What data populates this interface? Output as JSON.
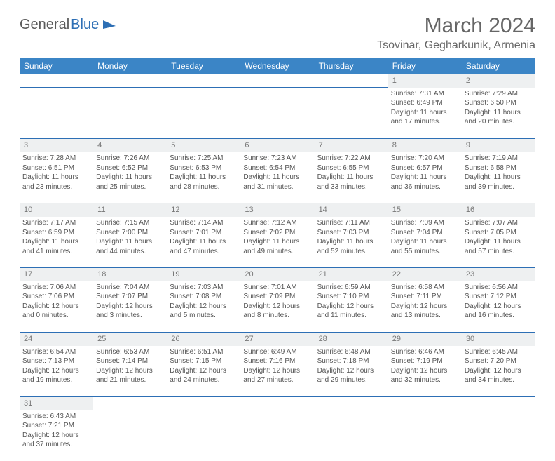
{
  "logo": {
    "text1": "General",
    "text2": "Blue"
  },
  "header": {
    "title": "March 2024",
    "location": "Tsovinar, Gegharkunik, Armenia"
  },
  "colors": {
    "headerBg": "#3b85c6",
    "dayRowBg": "#eef0f1",
    "border": "#2d6fb5"
  },
  "dayHeaders": [
    "Sunday",
    "Monday",
    "Tuesday",
    "Wednesday",
    "Thursday",
    "Friday",
    "Saturday"
  ],
  "weeks": [
    {
      "nums": [
        "",
        "",
        "",
        "",
        "",
        "1",
        "2"
      ],
      "cells": [
        null,
        null,
        null,
        null,
        null,
        {
          "sunrise": "Sunrise: 7:31 AM",
          "sunset": "Sunset: 6:49 PM",
          "day1": "Daylight: 11 hours",
          "day2": "and 17 minutes."
        },
        {
          "sunrise": "Sunrise: 7:29 AM",
          "sunset": "Sunset: 6:50 PM",
          "day1": "Daylight: 11 hours",
          "day2": "and 20 minutes."
        }
      ]
    },
    {
      "nums": [
        "3",
        "4",
        "5",
        "6",
        "7",
        "8",
        "9"
      ],
      "cells": [
        {
          "sunrise": "Sunrise: 7:28 AM",
          "sunset": "Sunset: 6:51 PM",
          "day1": "Daylight: 11 hours",
          "day2": "and 23 minutes."
        },
        {
          "sunrise": "Sunrise: 7:26 AM",
          "sunset": "Sunset: 6:52 PM",
          "day1": "Daylight: 11 hours",
          "day2": "and 25 minutes."
        },
        {
          "sunrise": "Sunrise: 7:25 AM",
          "sunset": "Sunset: 6:53 PM",
          "day1": "Daylight: 11 hours",
          "day2": "and 28 minutes."
        },
        {
          "sunrise": "Sunrise: 7:23 AM",
          "sunset": "Sunset: 6:54 PM",
          "day1": "Daylight: 11 hours",
          "day2": "and 31 minutes."
        },
        {
          "sunrise": "Sunrise: 7:22 AM",
          "sunset": "Sunset: 6:55 PM",
          "day1": "Daylight: 11 hours",
          "day2": "and 33 minutes."
        },
        {
          "sunrise": "Sunrise: 7:20 AM",
          "sunset": "Sunset: 6:57 PM",
          "day1": "Daylight: 11 hours",
          "day2": "and 36 minutes."
        },
        {
          "sunrise": "Sunrise: 7:19 AM",
          "sunset": "Sunset: 6:58 PM",
          "day1": "Daylight: 11 hours",
          "day2": "and 39 minutes."
        }
      ]
    },
    {
      "nums": [
        "10",
        "11",
        "12",
        "13",
        "14",
        "15",
        "16"
      ],
      "cells": [
        {
          "sunrise": "Sunrise: 7:17 AM",
          "sunset": "Sunset: 6:59 PM",
          "day1": "Daylight: 11 hours",
          "day2": "and 41 minutes."
        },
        {
          "sunrise": "Sunrise: 7:15 AM",
          "sunset": "Sunset: 7:00 PM",
          "day1": "Daylight: 11 hours",
          "day2": "and 44 minutes."
        },
        {
          "sunrise": "Sunrise: 7:14 AM",
          "sunset": "Sunset: 7:01 PM",
          "day1": "Daylight: 11 hours",
          "day2": "and 47 minutes."
        },
        {
          "sunrise": "Sunrise: 7:12 AM",
          "sunset": "Sunset: 7:02 PM",
          "day1": "Daylight: 11 hours",
          "day2": "and 49 minutes."
        },
        {
          "sunrise": "Sunrise: 7:11 AM",
          "sunset": "Sunset: 7:03 PM",
          "day1": "Daylight: 11 hours",
          "day2": "and 52 minutes."
        },
        {
          "sunrise": "Sunrise: 7:09 AM",
          "sunset": "Sunset: 7:04 PM",
          "day1": "Daylight: 11 hours",
          "day2": "and 55 minutes."
        },
        {
          "sunrise": "Sunrise: 7:07 AM",
          "sunset": "Sunset: 7:05 PM",
          "day1": "Daylight: 11 hours",
          "day2": "and 57 minutes."
        }
      ]
    },
    {
      "nums": [
        "17",
        "18",
        "19",
        "20",
        "21",
        "22",
        "23"
      ],
      "cells": [
        {
          "sunrise": "Sunrise: 7:06 AM",
          "sunset": "Sunset: 7:06 PM",
          "day1": "Daylight: 12 hours",
          "day2": "and 0 minutes."
        },
        {
          "sunrise": "Sunrise: 7:04 AM",
          "sunset": "Sunset: 7:07 PM",
          "day1": "Daylight: 12 hours",
          "day2": "and 3 minutes."
        },
        {
          "sunrise": "Sunrise: 7:03 AM",
          "sunset": "Sunset: 7:08 PM",
          "day1": "Daylight: 12 hours",
          "day2": "and 5 minutes."
        },
        {
          "sunrise": "Sunrise: 7:01 AM",
          "sunset": "Sunset: 7:09 PM",
          "day1": "Daylight: 12 hours",
          "day2": "and 8 minutes."
        },
        {
          "sunrise": "Sunrise: 6:59 AM",
          "sunset": "Sunset: 7:10 PM",
          "day1": "Daylight: 12 hours",
          "day2": "and 11 minutes."
        },
        {
          "sunrise": "Sunrise: 6:58 AM",
          "sunset": "Sunset: 7:11 PM",
          "day1": "Daylight: 12 hours",
          "day2": "and 13 minutes."
        },
        {
          "sunrise": "Sunrise: 6:56 AM",
          "sunset": "Sunset: 7:12 PM",
          "day1": "Daylight: 12 hours",
          "day2": "and 16 minutes."
        }
      ]
    },
    {
      "nums": [
        "24",
        "25",
        "26",
        "27",
        "28",
        "29",
        "30"
      ],
      "cells": [
        {
          "sunrise": "Sunrise: 6:54 AM",
          "sunset": "Sunset: 7:13 PM",
          "day1": "Daylight: 12 hours",
          "day2": "and 19 minutes."
        },
        {
          "sunrise": "Sunrise: 6:53 AM",
          "sunset": "Sunset: 7:14 PM",
          "day1": "Daylight: 12 hours",
          "day2": "and 21 minutes."
        },
        {
          "sunrise": "Sunrise: 6:51 AM",
          "sunset": "Sunset: 7:15 PM",
          "day1": "Daylight: 12 hours",
          "day2": "and 24 minutes."
        },
        {
          "sunrise": "Sunrise: 6:49 AM",
          "sunset": "Sunset: 7:16 PM",
          "day1": "Daylight: 12 hours",
          "day2": "and 27 minutes."
        },
        {
          "sunrise": "Sunrise: 6:48 AM",
          "sunset": "Sunset: 7:18 PM",
          "day1": "Daylight: 12 hours",
          "day2": "and 29 minutes."
        },
        {
          "sunrise": "Sunrise: 6:46 AM",
          "sunset": "Sunset: 7:19 PM",
          "day1": "Daylight: 12 hours",
          "day2": "and 32 minutes."
        },
        {
          "sunrise": "Sunrise: 6:45 AM",
          "sunset": "Sunset: 7:20 PM",
          "day1": "Daylight: 12 hours",
          "day2": "and 34 minutes."
        }
      ]
    },
    {
      "nums": [
        "31",
        "",
        "",
        "",
        "",
        "",
        ""
      ],
      "cells": [
        {
          "sunrise": "Sunrise: 6:43 AM",
          "sunset": "Sunset: 7:21 PM",
          "day1": "Daylight: 12 hours",
          "day2": "and 37 minutes."
        },
        null,
        null,
        null,
        null,
        null,
        null
      ]
    }
  ]
}
